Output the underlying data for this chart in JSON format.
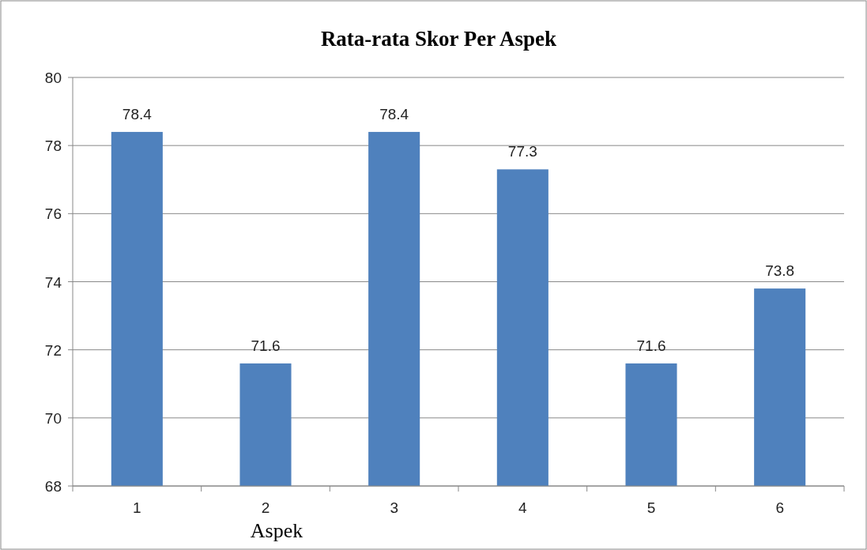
{
  "chart_data": {
    "type": "bar",
    "title": "Rata-rata Skor Per Aspek",
    "xlabel": "Aspek",
    "categories": [
      "1",
      "2",
      "3",
      "4",
      "5",
      "6"
    ],
    "values": [
      78.4,
      71.6,
      78.4,
      77.3,
      71.6,
      73.8
    ],
    "color": "#4f81bd",
    "ylim": [
      68,
      80
    ],
    "yticks": [
      68,
      70,
      72,
      74,
      76,
      78,
      80
    ],
    "grid": "y",
    "data_labels": true
  }
}
